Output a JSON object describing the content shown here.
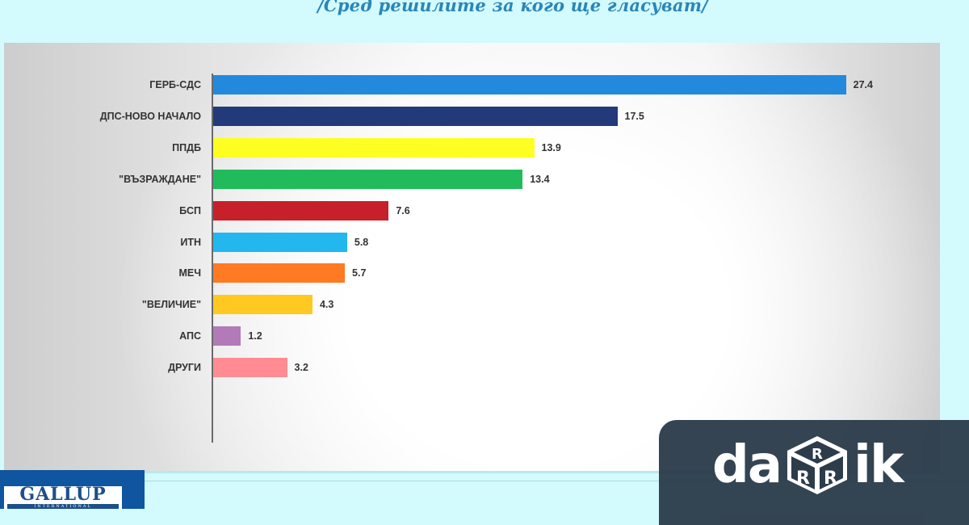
{
  "header": {
    "subtitle": "/Сред решилите за кого ще гласуват/"
  },
  "chart_data": {
    "type": "bar",
    "orientation": "horizontal",
    "title": "",
    "subtitle": "/Сред решилите за кого ще гласуват/",
    "xlabel": "",
    "ylabel": "",
    "grid": false,
    "legend": null,
    "categories": [
      "ГЕРБ-СДС",
      "ДПС-НОВО НАЧАЛО",
      "ППДБ",
      "\"ВЪЗРАЖДАНЕ\"",
      "БСП",
      "ИТН",
      "МЕЧ",
      "\"ВЕЛИЧИЕ\"",
      "АПС",
      "ДРУГИ"
    ],
    "values": [
      27.4,
      17.5,
      13.9,
      13.4,
      7.6,
      5.8,
      5.7,
      4.3,
      1.2,
      3.2
    ],
    "colors": [
      "#2389dd",
      "#223a79",
      "#ffff22",
      "#21bb5c",
      "#c8202a",
      "#22b7ee",
      "#ff7a22",
      "#ffc922",
      "#b27ab8",
      "#ff8c93"
    ],
    "value_labels": [
      "27.4",
      "17.5",
      "13.9",
      "13.4",
      "7.6",
      "5.8",
      "5.7",
      "4.3",
      "1.2",
      "3.2"
    ]
  },
  "bars": [
    {
      "label": "ГЕРБ-СДС",
      "value": "27.4"
    },
    {
      "label": "ДПС-НОВО НАЧАЛО",
      "value": "17.5"
    },
    {
      "label": "ППДБ",
      "value": "13.9"
    },
    {
      "label": "\"ВЪЗРАЖДАНЕ\"",
      "value": "13.4"
    },
    {
      "label": "БСП",
      "value": "7.6"
    },
    {
      "label": "ИТН",
      "value": "5.8"
    },
    {
      "label": "МЕЧ",
      "value": "5.7"
    },
    {
      "label": "\"ВЕЛИЧИЕ\"",
      "value": "4.3"
    },
    {
      "label": "АПС",
      "value": "1.2"
    },
    {
      "label": "ДРУГИ",
      "value": "3.2"
    }
  ],
  "logos": {
    "gallup_main": "GALLUP",
    "gallup_sub": "INTERNATIONAL",
    "darik_left": "da",
    "darik_right": "ik",
    "darik_dice_letter": "R"
  }
}
